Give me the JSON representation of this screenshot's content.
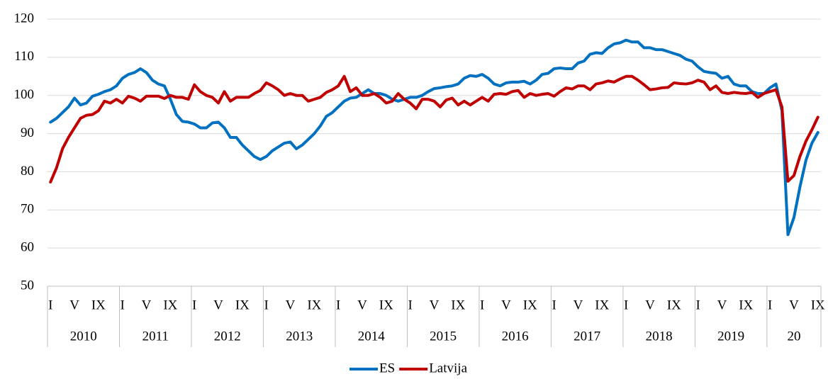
{
  "chart_data": {
    "type": "line",
    "categories": [
      "I",
      null,
      null,
      null,
      "V",
      null,
      null,
      null,
      "IX",
      null,
      null,
      null,
      "I",
      null,
      null,
      null,
      "V",
      null,
      null,
      null,
      "IX",
      null,
      null,
      null,
      "I",
      null,
      null,
      null,
      "V",
      null,
      null,
      null,
      "IX",
      null,
      null,
      null,
      "I",
      null,
      null,
      null,
      "V",
      null,
      null,
      null,
      "IX",
      null,
      null,
      null,
      "I",
      null,
      null,
      null,
      "V",
      null,
      null,
      null,
      "IX",
      null,
      null,
      null,
      "I",
      null,
      null,
      null,
      "V",
      null,
      null,
      null,
      "IX",
      null,
      null,
      null,
      "I",
      null,
      null,
      null,
      "V",
      null,
      null,
      null,
      "IX",
      null,
      null,
      null,
      "I",
      null,
      null,
      null,
      "V",
      null,
      null,
      null,
      "IX",
      null,
      null,
      null,
      "I",
      null,
      null,
      null,
      "V",
      null,
      null,
      null,
      "IX",
      null,
      null,
      null,
      "I",
      null,
      null,
      null,
      "V",
      null,
      null,
      null,
      "IX",
      null,
      null,
      null,
      "I",
      null,
      null,
      null,
      "V",
      null,
      null,
      null,
      "IX"
    ],
    "years": [
      "2010",
      null,
      null,
      null,
      null,
      null,
      null,
      null,
      null,
      null,
      null,
      null,
      "2011",
      null,
      null,
      null,
      null,
      null,
      null,
      null,
      null,
      null,
      null,
      null,
      "2012",
      null,
      null,
      null,
      null,
      null,
      null,
      null,
      null,
      null,
      null,
      null,
      "2013",
      null,
      null,
      null,
      null,
      null,
      null,
      null,
      null,
      null,
      null,
      null,
      "2014",
      null,
      null,
      null,
      null,
      null,
      null,
      null,
      null,
      null,
      null,
      null,
      "2015",
      null,
      null,
      null,
      null,
      null,
      null,
      null,
      null,
      null,
      null,
      null,
      "2016",
      null,
      null,
      null,
      null,
      null,
      null,
      null,
      null,
      null,
      null,
      null,
      "2017",
      null,
      null,
      null,
      null,
      null,
      null,
      null,
      null,
      null,
      null,
      null,
      "2018",
      null,
      null,
      null,
      null,
      null,
      null,
      null,
      null,
      null,
      null,
      null,
      "2019",
      null,
      null,
      null,
      null,
      null,
      null,
      null,
      null,
      null,
      null,
      null,
      "20",
      null,
      null,
      null,
      null,
      null,
      null,
      null,
      null
    ],
    "series": [
      {
        "name": "ES",
        "color": "#0070c0",
        "values": [
          93,
          94,
          95.5,
          97,
          99.3,
          97.5,
          98,
          99.8,
          100.3,
          101,
          101.5,
          102.5,
          104.5,
          105.5,
          106,
          107,
          106,
          104,
          103,
          102.5,
          99,
          95,
          93.2,
          93,
          92.5,
          91.5,
          91.5,
          92.8,
          93,
          91.5,
          89,
          89,
          87,
          85.5,
          84,
          83.2,
          84,
          85.5,
          86.5,
          87.5,
          87.8,
          86,
          87,
          88.5,
          90,
          92,
          94.5,
          95.5,
          97,
          98.5,
          99.3,
          99.5,
          100.5,
          101.5,
          100.5,
          100.5,
          100,
          99,
          98.5,
          99,
          99.5,
          99.5,
          100,
          101,
          101.8,
          102,
          102.3,
          102.5,
          103,
          104.5,
          105.2,
          105,
          105.5,
          104.5,
          103,
          102.5,
          103.3,
          103.5,
          103.5,
          103.7,
          103,
          104,
          105.5,
          105.8,
          107,
          107.2,
          107,
          107,
          108.5,
          109,
          110.8,
          111.2,
          111,
          112.5,
          113.5,
          113.8,
          114.5,
          114,
          114,
          112.5,
          112.5,
          112,
          112,
          111.5,
          111,
          110.5,
          109.5,
          109,
          107.5,
          106.3,
          106,
          105.8,
          104.5,
          105,
          103,
          102.5,
          102.5,
          101,
          100.5,
          100.5,
          102,
          103,
          96,
          63.5,
          68,
          76,
          83,
          87.5,
          90.3
        ]
      },
      {
        "name": "Latvija",
        "color": "#c00000",
        "values": [
          77.3,
          81,
          86,
          89,
          91.5,
          94,
          94.8,
          95,
          96,
          98.5,
          98,
          99,
          98,
          99.8,
          99.3,
          98.5,
          99.8,
          99.8,
          99.8,
          99.2,
          100,
          99.5,
          99.5,
          99,
          102.8,
          101,
          100,
          99.5,
          98,
          101,
          98.5,
          99.5,
          99.5,
          99.5,
          100.5,
          101.3,
          103.3,
          102.5,
          101.5,
          100,
          100.5,
          100,
          100,
          98.5,
          99,
          99.5,
          100.8,
          101.5,
          102.5,
          105,
          101,
          102,
          100,
          100,
          100.5,
          99.5,
          98,
          98.5,
          100.5,
          99,
          98,
          96.5,
          99,
          99,
          98.5,
          97,
          98.8,
          99.3,
          97.5,
          98.5,
          97.5,
          98.5,
          99.5,
          98.5,
          100.3,
          100.5,
          100.3,
          101,
          101.3,
          99.5,
          100.5,
          100,
          100.3,
          100.5,
          99.8,
          101,
          102,
          101.7,
          102.5,
          102.5,
          101.5,
          103,
          103.3,
          103.8,
          103.5,
          104.3,
          105,
          105,
          104,
          102.8,
          101.5,
          101.7,
          102,
          102.1,
          103.3,
          103.1,
          103,
          103.3,
          104,
          103.5,
          101.5,
          102.5,
          100.8,
          100.5,
          100.8,
          100.6,
          100.5,
          100.8,
          99.5,
          100.5,
          101,
          101.5,
          97,
          77.5,
          79,
          84,
          88,
          91,
          94.3
        ]
      }
    ],
    "ylim": [
      50,
      120
    ],
    "yticks": [
      50,
      60,
      70,
      80,
      90,
      100,
      110,
      120
    ],
    "grid": true,
    "legend": "bottom"
  }
}
